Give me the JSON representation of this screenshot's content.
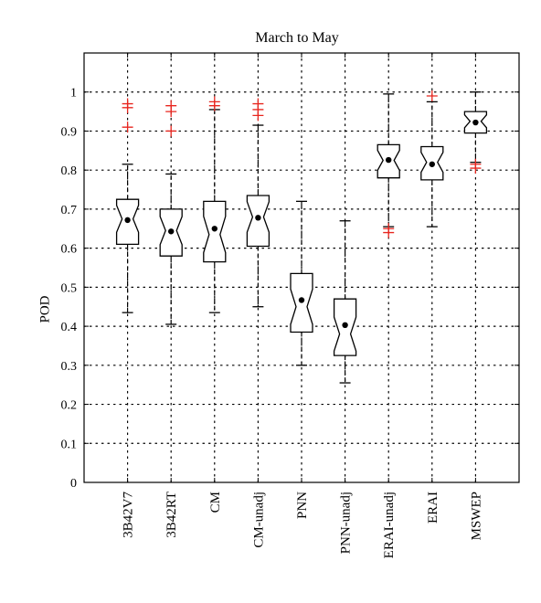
{
  "chart_data": {
    "type": "box",
    "title": "March to May",
    "xlabel": "",
    "ylabel": "POD",
    "ylim": [
      0,
      1.1
    ],
    "yticks": [
      0,
      0.1,
      0.2,
      0.3,
      0.4,
      0.5,
      0.6,
      0.7,
      0.8,
      0.9,
      1
    ],
    "ytick_labels": [
      "0",
      "0.1",
      "0.2",
      "0.3",
      "0.4",
      "0.5",
      "0.6",
      "0.7",
      "0.8",
      "0.9",
      "1"
    ],
    "grid": true,
    "categories": [
      "3B42V7",
      "3B42RT",
      "CM",
      "CM-unadj",
      "PNN",
      "PNN-unadj",
      "ERAI-unadj",
      "ERAI",
      "MSWEP"
    ],
    "boxes": [
      {
        "whisker_low": 0.435,
        "q1": 0.61,
        "median": 0.675,
        "q3": 0.725,
        "whisker_high": 0.815,
        "mean": 0.672,
        "outliers": [
          0.91,
          0.96,
          0.97
        ]
      },
      {
        "whisker_low": 0.405,
        "q1": 0.58,
        "median": 0.645,
        "q3": 0.7,
        "whisker_high": 0.79,
        "mean": 0.643,
        "outliers": [
          0.9,
          0.95,
          0.965
        ]
      },
      {
        "whisker_low": 0.435,
        "q1": 0.565,
        "median": 0.635,
        "q3": 0.72,
        "whisker_high": 0.955,
        "mean": 0.65,
        "outliers": [
          0.965,
          0.975
        ]
      },
      {
        "whisker_low": 0.45,
        "q1": 0.605,
        "median": 0.68,
        "q3": 0.735,
        "whisker_high": 0.915,
        "mean": 0.678,
        "outliers": [
          0.94,
          0.955,
          0.97
        ]
      },
      {
        "whisker_low": 0.3,
        "q1": 0.385,
        "median": 0.45,
        "q3": 0.535,
        "whisker_high": 0.72,
        "mean": 0.467,
        "outliers": []
      },
      {
        "whisker_low": 0.255,
        "q1": 0.325,
        "median": 0.38,
        "q3": 0.47,
        "whisker_high": 0.67,
        "mean": 0.403,
        "outliers": []
      },
      {
        "whisker_low": 0.655,
        "q1": 0.78,
        "median": 0.825,
        "q3": 0.865,
        "whisker_high": 0.995,
        "mean": 0.826,
        "outliers": [
          0.64,
          0.65
        ]
      },
      {
        "whisker_low": 0.655,
        "q1": 0.775,
        "median": 0.82,
        "q3": 0.86,
        "whisker_high": 0.975,
        "mean": 0.815,
        "outliers": [
          0.99
        ]
      },
      {
        "whisker_low": 0.82,
        "q1": 0.895,
        "median": 0.925,
        "q3": 0.95,
        "whisker_high": 1.0,
        "mean": 0.922,
        "outliers": [
          0.805,
          0.815
        ]
      }
    ],
    "colors": {
      "box": "#000000",
      "outlier": "#e8261f",
      "grid": "#000000",
      "mean": "#000000"
    }
  }
}
